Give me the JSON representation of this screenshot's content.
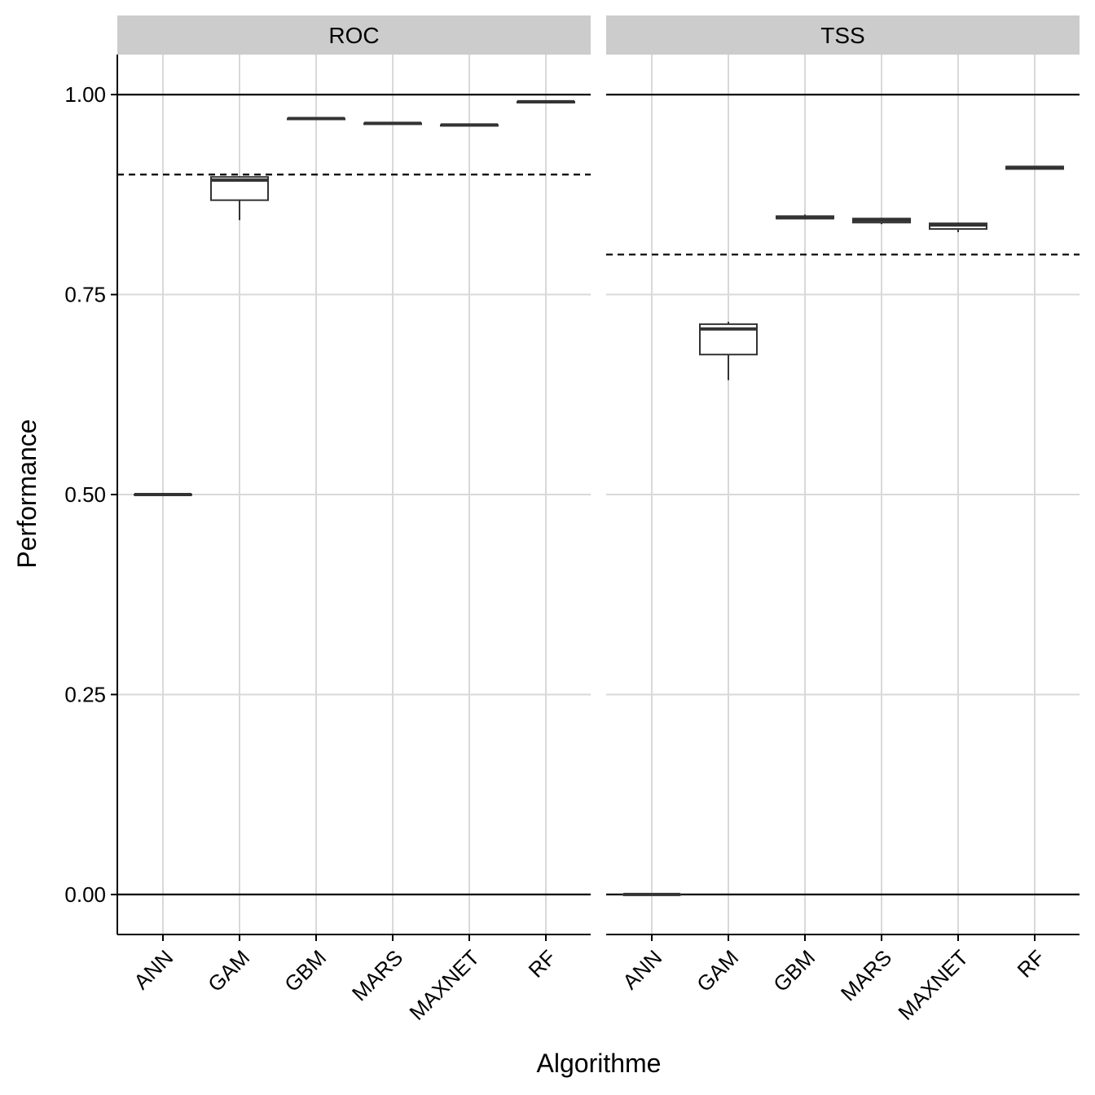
{
  "chart_data": {
    "type": "boxplot",
    "xlabel": "Algorithme",
    "ylabel": "Performance",
    "ylim": [
      -0.05,
      1.05
    ],
    "yticks": [
      0.0,
      0.25,
      0.5,
      0.75,
      1.0
    ],
    "ytick_labels": [
      "0.00",
      "0.25",
      "0.50",
      "0.75",
      "1.00"
    ],
    "categories": [
      "ANN",
      "GAM",
      "GBM",
      "MARS",
      "MAXNET",
      "RF"
    ],
    "grid": true,
    "reference_lines_solid": [
      0.0,
      1.0
    ],
    "panels": [
      {
        "label": "ROC",
        "threshold": 0.9,
        "boxes": [
          {
            "category": "ANN",
            "min": 0.5,
            "q1": 0.5,
            "median": 0.5,
            "q3": 0.5,
            "max": 0.5
          },
          {
            "category": "GAM",
            "min": 0.843,
            "q1": 0.868,
            "median": 0.893,
            "q3": 0.897,
            "max": 0.898
          },
          {
            "category": "GBM",
            "min": 0.969,
            "q1": 0.969,
            "median": 0.97,
            "q3": 0.97,
            "max": 0.971
          },
          {
            "category": "MARS",
            "min": 0.963,
            "q1": 0.963,
            "median": 0.964,
            "q3": 0.964,
            "max": 0.965
          },
          {
            "category": "MAXNET",
            "min": 0.961,
            "q1": 0.961,
            "median": 0.962,
            "q3": 0.962,
            "max": 0.963
          },
          {
            "category": "RF",
            "min": 0.99,
            "q1": 0.99,
            "median": 0.991,
            "q3": 0.991,
            "max": 0.992
          }
        ]
      },
      {
        "label": "TSS",
        "threshold": 0.8,
        "boxes": [
          {
            "category": "ANN",
            "min": 0.0,
            "q1": 0.0,
            "median": 0.0,
            "q3": 0.0,
            "max": 0.0
          },
          {
            "category": "GAM",
            "min": 0.643,
            "q1": 0.675,
            "median": 0.707,
            "q3": 0.713,
            "max": 0.716
          },
          {
            "category": "GBM",
            "min": 0.844,
            "q1": 0.845,
            "median": 0.846,
            "q3": 0.848,
            "max": 0.85
          },
          {
            "category": "MARS",
            "min": 0.838,
            "q1": 0.84,
            "median": 0.843,
            "q3": 0.845,
            "max": 0.846
          },
          {
            "category": "MAXNET",
            "min": 0.828,
            "q1": 0.832,
            "median": 0.837,
            "q3": 0.839,
            "max": 0.84
          },
          {
            "category": "RF",
            "min": 0.907,
            "q1": 0.907,
            "median": 0.909,
            "q3": 0.91,
            "max": 0.911
          }
        ]
      }
    ],
    "colors": {
      "box_stroke": "#333333",
      "box_fill": "#ffffff",
      "grid": "#d9d9d9",
      "strip_bg": "#cccccc",
      "axis": "#000000"
    }
  }
}
